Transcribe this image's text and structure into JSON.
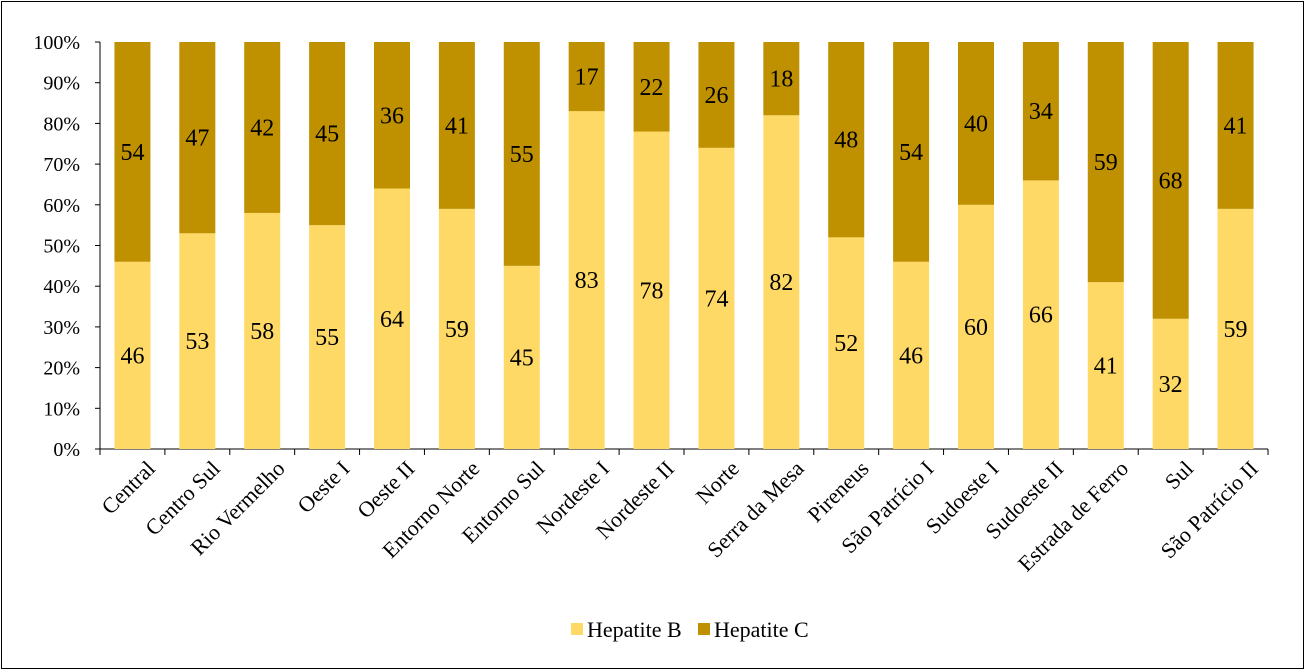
{
  "chart_data": {
    "type": "bar",
    "stacked": true,
    "percent_stacked": true,
    "categories": [
      "Central",
      "Centro Sul",
      "Rio Vermelho",
      "Oeste I",
      "Oeste II",
      "Entorno Norte",
      "Entorno Sul",
      "Nordeste I",
      "Nordeste II",
      "Norte",
      "Serra da Mesa",
      "Pireneus",
      "São Patrício I",
      "Sudoeste I",
      "Sudoeste II",
      "Estrada de Ferro",
      "Sul",
      "São Patrício II"
    ],
    "series": [
      {
        "name": "Hepatite B",
        "color": "#FFD966",
        "values": [
          46,
          53,
          58,
          55,
          64,
          59,
          45,
          83,
          78,
          74,
          82,
          52,
          46,
          60,
          66,
          41,
          32,
          59
        ]
      },
      {
        "name": "Hepatite C",
        "color": "#BF9000",
        "values": [
          54,
          47,
          42,
          45,
          36,
          41,
          55,
          17,
          22,
          26,
          18,
          48,
          54,
          40,
          34,
          59,
          68,
          41
        ]
      }
    ],
    "y_ticks": [
      "0%",
      "10%",
      "20%",
      "30%",
      "40%",
      "50%",
      "60%",
      "70%",
      "80%",
      "90%",
      "100%"
    ],
    "ylim": [
      0,
      100
    ],
    "grid": false,
    "legend_position": "bottom",
    "title": "",
    "xlabel": "",
    "ylabel": ""
  }
}
